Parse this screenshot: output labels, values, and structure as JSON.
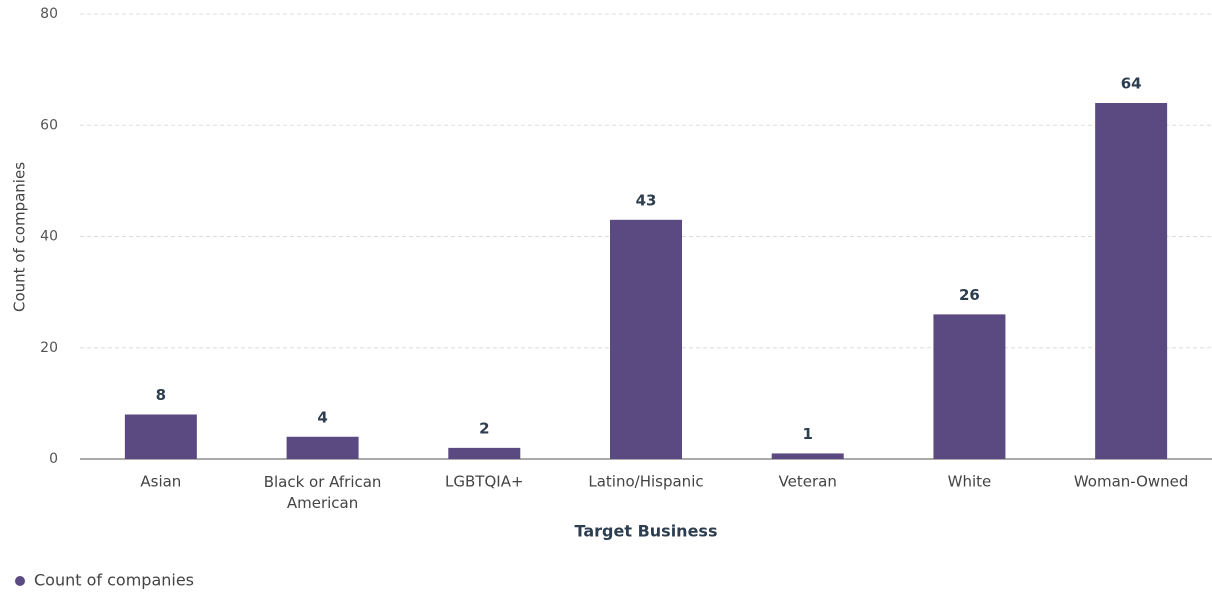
{
  "chart_data": {
    "type": "bar",
    "x_label": "Target Business",
    "y_label": "Count of companies",
    "categories": [
      "Asian",
      "Black or African American",
      "LGBTQIA+",
      "Latino/Hispanic",
      "Veteran",
      "White",
      "Woman-Owned"
    ],
    "series": [
      {
        "name": "Count of companies",
        "color": "#5b4a82",
        "values": [
          8,
          4,
          2,
          43,
          1,
          26,
          64
        ]
      }
    ],
    "ylim": [
      0,
      80
    ],
    "yticks": [
      0,
      20,
      40,
      60,
      80
    ],
    "grid": true,
    "legend": "bottom-left",
    "data_labels": true
  }
}
